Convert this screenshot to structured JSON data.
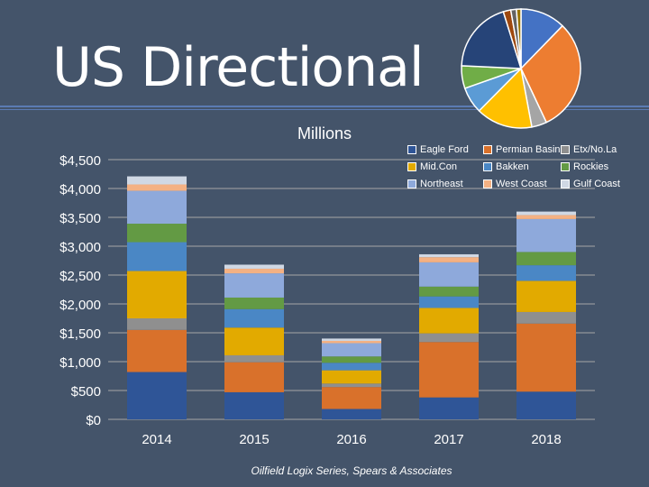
{
  "slide": {
    "title": "US Directional",
    "source": "Oilfield Logix Series, Spears & Associates"
  },
  "colors": {
    "background": "#44546a",
    "title_rule": "#5b7bb3"
  },
  "pie_chart": {
    "type": "pie",
    "note": "decorative summary pie, no labels shown",
    "slices": [
      {
        "value": 12,
        "color": "#4472c4"
      },
      {
        "value": 30,
        "color": "#ed7d31"
      },
      {
        "value": 4,
        "color": "#a5a5a5"
      },
      {
        "value": 15,
        "color": "#ffc000"
      },
      {
        "value": 7,
        "color": "#5b9bd5"
      },
      {
        "value": 6,
        "color": "#70ad47"
      },
      {
        "value": 19,
        "color": "#264478"
      },
      {
        "value": 2,
        "color": "#9e480e"
      },
      {
        "value": 1.5,
        "color": "#636363"
      },
      {
        "value": 1.2,
        "color": "#997300"
      }
    ]
  },
  "chart_data": {
    "type": "bar",
    "stacked": true,
    "title": "Millions",
    "categories": [
      "2014",
      "2015",
      "2016",
      "2017",
      "2018"
    ],
    "yticks": [
      "$0",
      "$500",
      "$1,000",
      "$1,500",
      "$2,000",
      "$2,500",
      "$3,000",
      "$3,500",
      "$4,000",
      "$4,500"
    ],
    "ylim": [
      0,
      4500
    ],
    "grid": true,
    "legend_position": "top-right",
    "series": [
      {
        "name": "Eagle Ford",
        "color": "#2f5597",
        "values": [
          820,
          470,
          180,
          380,
          480
        ]
      },
      {
        "name": "Permian Basin",
        "color": "#d9712b",
        "values": [
          730,
          520,
          380,
          960,
          1180
        ]
      },
      {
        "name": "Etx/No.La",
        "color": "#8f8f8f",
        "values": [
          200,
          120,
          60,
          150,
          200
        ]
      },
      {
        "name": "Mid.Con",
        "color": "#e2aa00",
        "values": [
          820,
          480,
          230,
          440,
          540
        ]
      },
      {
        "name": "Bakken",
        "color": "#4a87c5",
        "values": [
          500,
          320,
          130,
          200,
          270
        ]
      },
      {
        "name": "Rockies",
        "color": "#639a44",
        "values": [
          320,
          200,
          110,
          170,
          230
        ]
      },
      {
        "name": "Northeast",
        "color": "#8ea9db",
        "values": [
          570,
          420,
          230,
          420,
          570
        ]
      },
      {
        "name": "West Coast",
        "color": "#f4b183",
        "values": [
          110,
          80,
          40,
          90,
          70
        ]
      },
      {
        "name": "Gulf Coast",
        "color": "#d0d8e4",
        "values": [
          140,
          70,
          40,
          50,
          60
        ]
      }
    ]
  }
}
